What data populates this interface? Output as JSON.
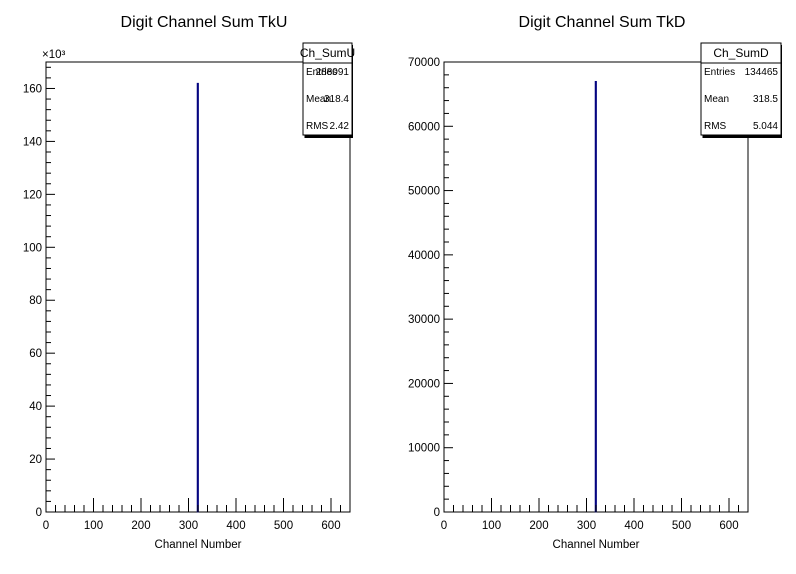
{
  "chart_data": [
    {
      "type": "bar",
      "title": "Digit Channel Sum TkU",
      "xlabel": "Channel Number",
      "ylabel": "",
      "xlim": [
        0,
        640
      ],
      "ylim": [
        0,
        170000
      ],
      "x_ticks": [
        0,
        100,
        200,
        300,
        400,
        500,
        600
      ],
      "y_ticks": [
        0,
        20000,
        40000,
        60000,
        80000,
        100000,
        120000,
        140000,
        160000
      ],
      "y_tick_labels": [
        "0",
        "20",
        "40",
        "60",
        "80",
        "100",
        "120",
        "140",
        "160"
      ],
      "y_exponent": "×10³",
      "bars": [
        {
          "x": 318,
          "width": 2,
          "value": 162000
        }
      ],
      "bar_color": "#00007f",
      "stats": {
        "name": "Ch_SumU",
        "rows": [
          {
            "label": "Entries",
            "value": "288091"
          },
          {
            "label": "Mean",
            "value": "318.4"
          },
          {
            "label": "RMS",
            "value": "2.42"
          }
        ]
      }
    },
    {
      "type": "bar",
      "title": "Digit Channel Sum TkD",
      "xlabel": "Channel Number",
      "ylabel": "",
      "xlim": [
        0,
        640
      ],
      "ylim": [
        0,
        70000
      ],
      "x_ticks": [
        0,
        100,
        200,
        300,
        400,
        500,
        600
      ],
      "y_ticks": [
        0,
        10000,
        20000,
        30000,
        40000,
        50000,
        60000,
        70000
      ],
      "y_tick_labels": [
        "0",
        "10000",
        "20000",
        "30000",
        "40000",
        "50000",
        "60000",
        "70000"
      ],
      "y_exponent": "",
      "bars": [
        {
          "x": 318,
          "width": 2,
          "value": 67000
        }
      ],
      "bar_color": "#00007f",
      "stats": {
        "name": "Ch_SumD",
        "rows": [
          {
            "label": "Entries",
            "value": "134465"
          },
          {
            "label": "Mean",
            "value": "318.5"
          },
          {
            "label": "RMS",
            "value": "5.044"
          }
        ]
      }
    }
  ]
}
